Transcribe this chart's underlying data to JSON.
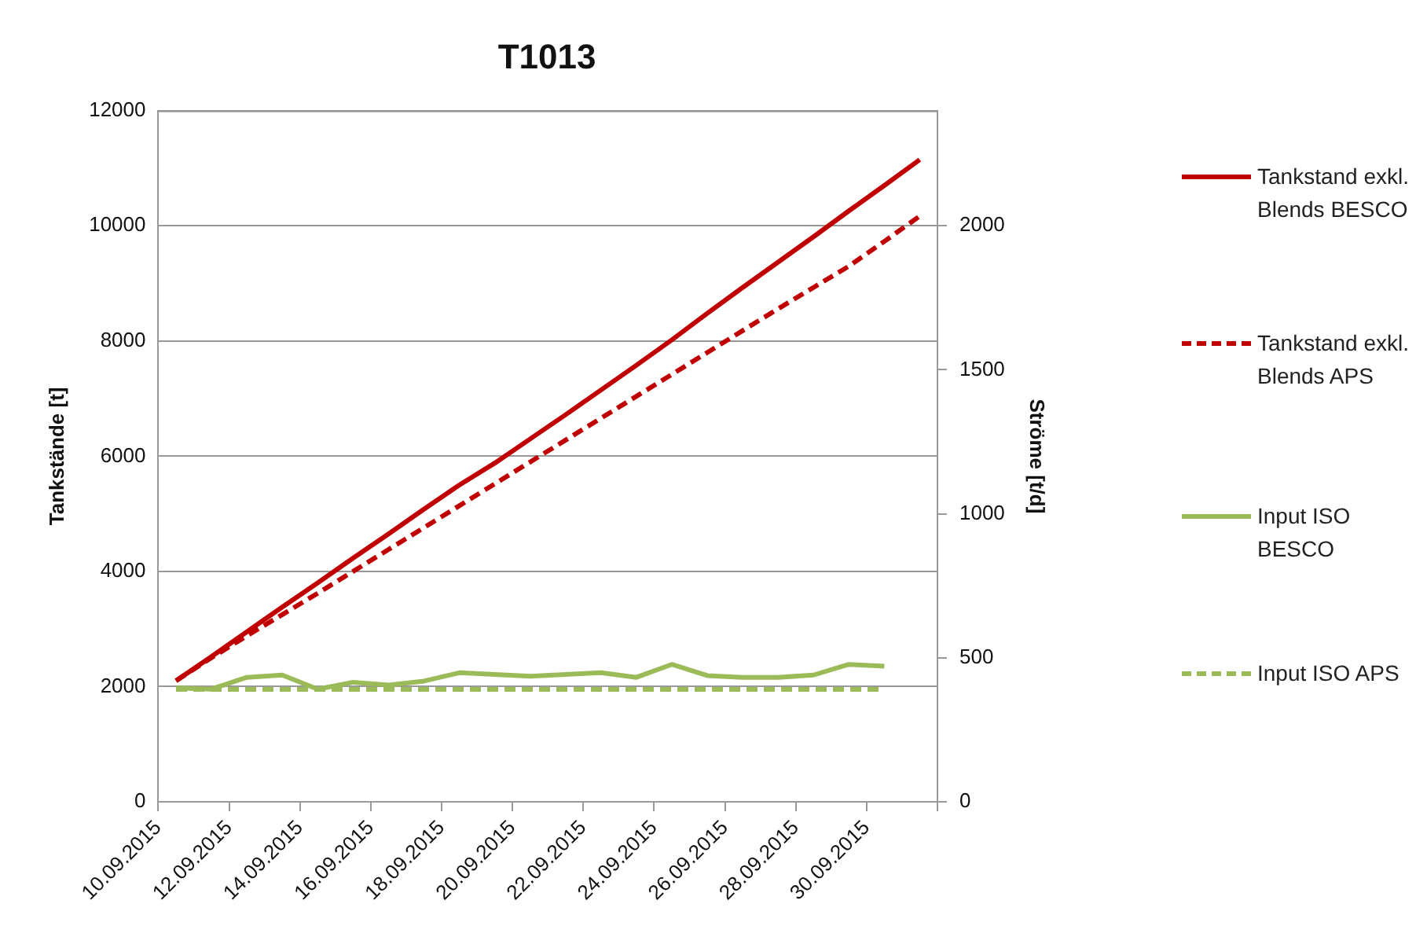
{
  "chart_data": {
    "type": "line",
    "title": "T1013",
    "ylabel": "Tankstände [t]",
    "y2label": "Ströme [t/d]",
    "x": [
      "2015-09-10T12:00",
      "2015-09-11T12:00",
      "2015-09-12T12:00",
      "2015-09-13T12:00",
      "2015-09-14T12:00",
      "2015-09-15T12:00",
      "2015-09-16T12:00",
      "2015-09-17T12:00",
      "2015-09-18T12:00",
      "2015-09-19T12:00",
      "2015-09-20T12:00",
      "2015-09-21T12:00",
      "2015-09-22T12:00",
      "2015-09-23T12:00",
      "2015-09-24T12:00",
      "2015-09-25T12:00",
      "2015-09-26T12:00",
      "2015-09-27T12:00",
      "2015-09-28T12:00",
      "2015-09-29T12:00",
      "2015-09-30T12:00",
      "2015-10-01T12:00"
    ],
    "xlim": [
      "2015-09-10",
      "2015-10-02"
    ],
    "xticks": [
      {
        "value": "2015-09-10",
        "label": "10.09.2015"
      },
      {
        "value": "2015-09-12",
        "label": "12.09.2015"
      },
      {
        "value": "2015-09-14",
        "label": "14.09.2015"
      },
      {
        "value": "2015-09-16",
        "label": "16.09.2015"
      },
      {
        "value": "2015-09-18",
        "label": "18.09.2015"
      },
      {
        "value": "2015-09-20",
        "label": "20.09.2015"
      },
      {
        "value": "2015-09-22",
        "label": "22.09.2015"
      },
      {
        "value": "2015-09-24",
        "label": "24.09.2015"
      },
      {
        "value": "2015-09-26",
        "label": "26.09.2015"
      },
      {
        "value": "2015-09-28",
        "label": "28.09.2015"
      },
      {
        "value": "2015-09-30",
        "label": "30.09.2015"
      },
      {
        "value": "2015-10-02",
        "label": null
      }
    ],
    "ylim": [
      0,
      12000
    ],
    "yticks": [
      0,
      2000,
      4000,
      6000,
      8000,
      10000,
      12000
    ],
    "y2lim": [
      0,
      2400
    ],
    "y2ticks": [
      0,
      500,
      1000,
      1500,
      2000
    ],
    "grid": "y",
    "legend": "right",
    "marker": "none",
    "series": [
      {
        "name": "Tankstand exkl. Blends BESCO",
        "color": "#c00000",
        "line_style": "solid",
        "values": [
          2100,
          2520,
          2950,
          3380,
          3800,
          4230,
          4650,
          5080,
          5500,
          5880,
          6300,
          6720,
          7150,
          7580,
          8020,
          8480,
          8930,
          9370,
          9810,
          10260,
          10700,
          11150
        ]
      },
      {
        "name": "Tankstand exkl. Blends APS",
        "color": "#c00000",
        "line_style": "dashed",
        "values": [
          2100,
          2500,
          2880,
          3250,
          3620,
          4000,
          4380,
          4760,
          5140,
          5520,
          5900,
          6280,
          6660,
          7040,
          7420,
          7800,
          8180,
          8560,
          8930,
          9300,
          9730,
          10170
        ]
      },
      {
        "name": "Input ISO BESCO",
        "color": "#9bbb59",
        "line_style": "solid",
        "axis": "y2",
        "values": [
          395,
          391,
          432,
          440,
          391,
          415,
          405,
          419,
          448,
          442,
          436,
          442,
          448,
          432,
          477,
          438,
          432,
          432,
          440,
          477,
          471,
          null
        ]
      },
      {
        "name": "Input ISO APS",
        "color": "#9bbb59",
        "line_style": "dashed",
        "axis": "y2",
        "values": [
          390,
          390,
          390,
          390,
          390,
          390,
          390,
          390,
          390,
          390,
          390,
          390,
          390,
          390,
          390,
          390,
          390,
          390,
          390,
          390,
          390,
          null
        ]
      }
    ]
  }
}
